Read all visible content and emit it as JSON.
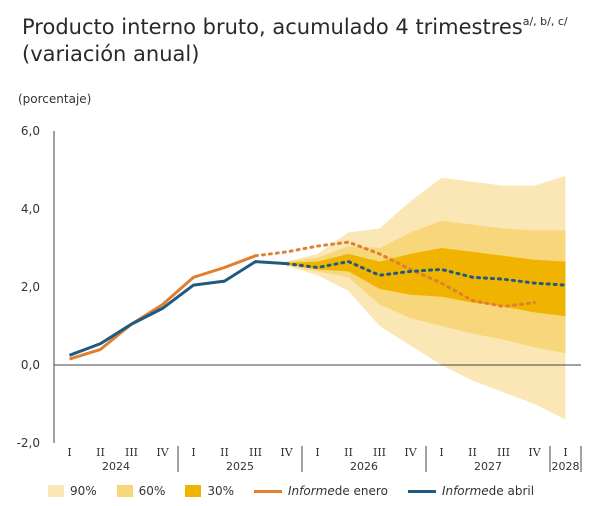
{
  "title": {
    "line1": "Producto interno bruto, acumulado 4 trimestres",
    "notes": "a/, b/, c/",
    "line2": "(variación anual)"
  },
  "chart_data": {
    "type": "line",
    "ylabel": "(porcentaje)",
    "ylim": [
      -2.0,
      6.0
    ],
    "yticks": [
      "6,0",
      "4,0",
      "2,0",
      "0,0",
      "-2,0"
    ],
    "x_quarters": [
      "I",
      "II",
      "III",
      "IV",
      "I",
      "II",
      "III",
      "IV",
      "I",
      "II",
      "III",
      "IV",
      "I",
      "II",
      "III",
      "IV",
      "I"
    ],
    "x_years": [
      "2024",
      "2025",
      "2026",
      "2027",
      "2028"
    ],
    "colors": {
      "band90": "#fbe7b6",
      "band60": "#f8d77c",
      "band30": "#f0b400",
      "enero": "#e07f2f",
      "abril": "#1f5a80"
    },
    "series": [
      {
        "name": "Informe de enero",
        "observed": [
          [
            0,
            0.15
          ],
          [
            1,
            0.4
          ],
          [
            2,
            1.05
          ],
          [
            3,
            1.55
          ],
          [
            4,
            2.25
          ],
          [
            5,
            2.5
          ],
          [
            6,
            2.8
          ]
        ],
        "forecast": [
          [
            6,
            2.8
          ],
          [
            7,
            2.9
          ],
          [
            8,
            3.05
          ],
          [
            9,
            3.15
          ],
          [
            10,
            2.85
          ],
          [
            11,
            2.45
          ],
          [
            12,
            2.1
          ],
          [
            13,
            1.65
          ],
          [
            14,
            1.5
          ],
          [
            15,
            1.6
          ]
        ]
      },
      {
        "name": "Informe de abril",
        "observed": [
          [
            0,
            0.25
          ],
          [
            1,
            0.55
          ],
          [
            2,
            1.05
          ],
          [
            3,
            1.45
          ],
          [
            4,
            2.05
          ],
          [
            5,
            2.15
          ],
          [
            6,
            2.65
          ],
          [
            7,
            2.6
          ]
        ],
        "forecast": [
          [
            7,
            2.6
          ],
          [
            8,
            2.5
          ],
          [
            9,
            2.65
          ],
          [
            10,
            2.3
          ],
          [
            11,
            2.4
          ],
          [
            12,
            2.45
          ],
          [
            13,
            2.25
          ],
          [
            14,
            2.2
          ],
          [
            15,
            2.1
          ],
          [
            16,
            2.05
          ]
        ]
      }
    ],
    "fan_chart": {
      "x": [
        7,
        8,
        9,
        10,
        11,
        12,
        13,
        14,
        15,
        16
      ],
      "band90": {
        "upper": [
          2.65,
          2.85,
          3.4,
          3.5,
          4.2,
          4.8,
          4.7,
          4.6,
          4.6,
          4.85
        ],
        "lower": [
          2.55,
          2.3,
          1.9,
          1.0,
          0.5,
          0.0,
          -0.4,
          -0.7,
          -1.0,
          -1.4
        ]
      },
      "band60": {
        "upper": [
          2.65,
          2.75,
          3.05,
          3.0,
          3.4,
          3.7,
          3.6,
          3.5,
          3.45,
          3.45
        ],
        "lower": [
          2.55,
          2.4,
          2.25,
          1.55,
          1.2,
          1.0,
          0.8,
          0.65,
          0.45,
          0.3
        ]
      },
      "band30": {
        "upper": [
          2.62,
          2.65,
          2.85,
          2.65,
          2.85,
          3.0,
          2.9,
          2.8,
          2.7,
          2.65
        ],
        "lower": [
          2.58,
          2.45,
          2.4,
          1.95,
          1.8,
          1.75,
          1.6,
          1.5,
          1.35,
          1.25
        ]
      }
    },
    "legend": [
      "90%",
      "60%",
      "30%",
      "Informe de enero",
      "Informe de abril"
    ]
  },
  "legend": {
    "band90": "90%",
    "band60": "60%",
    "band30": "30%",
    "enero_italic": "Informe",
    "enero_rest": " de enero",
    "abril_italic": "Informe",
    "abril_rest": " de abril"
  }
}
